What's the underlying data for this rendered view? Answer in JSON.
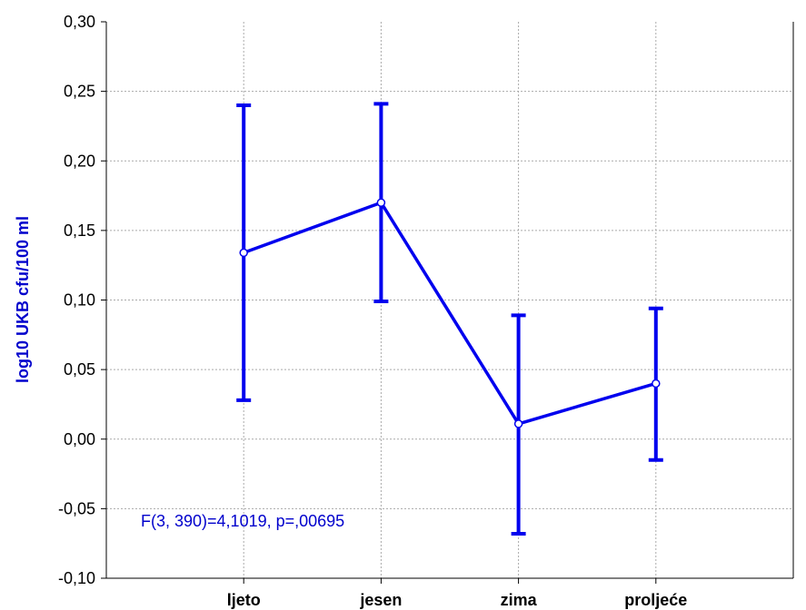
{
  "chart_data": {
    "type": "line",
    "title": "",
    "xlabel": "",
    "ylabel": "log10 UKB cfu/100 ml",
    "categories": [
      "ljeto",
      "jesen",
      "zima",
      "proljeće"
    ],
    "series": [
      {
        "values": [
          0.134,
          0.17,
          0.011,
          0.04
        ],
        "error_low": [
          0.028,
          0.099,
          -0.068,
          -0.015
        ],
        "error_high": [
          0.24,
          0.241,
          0.089,
          0.094
        ]
      }
    ],
    "ylim": [
      -0.1,
      0.3
    ],
    "yticks": [
      -0.1,
      -0.05,
      0.0,
      0.05,
      0.1,
      0.15,
      0.2,
      0.25,
      0.3
    ],
    "ytick_labels": [
      "-0,10",
      "-0,05",
      "0,00",
      "0,05",
      "0,10",
      "0,15",
      "0,20",
      "0,25",
      "0,30"
    ],
    "grid": true,
    "annotation": "F(3, 390)=4,1019, p=,00695",
    "colors": {
      "series": "#0000ee",
      "axis": "#000000",
      "grid": "#aaaaaa",
      "label": "#0000cc"
    }
  }
}
